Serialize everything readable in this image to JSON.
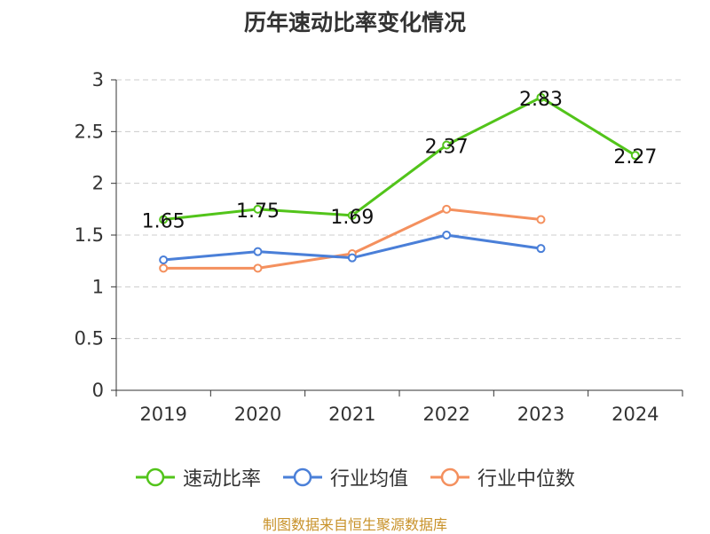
{
  "chart_data": {
    "type": "line",
    "title": "历年速动比率变化情况",
    "categories": [
      "2019",
      "2020",
      "2021",
      "2022",
      "2023",
      "2024"
    ],
    "series": [
      {
        "name": "速动比率",
        "values": [
          1.65,
          1.75,
          1.69,
          2.37,
          2.83,
          2.27
        ],
        "color": "#52c41a",
        "labels": [
          "1.65",
          "1.75",
          "1.69",
          "2.37",
          "2.83",
          "2.27"
        ]
      },
      {
        "name": "行业均值",
        "values": [
          1.26,
          1.34,
          1.28,
          1.5,
          1.37,
          null
        ],
        "color": "#4a7fd8"
      },
      {
        "name": "行业中位数",
        "values": [
          1.18,
          1.18,
          1.32,
          1.75,
          1.65,
          null
        ],
        "color": "#f4905e"
      }
    ],
    "yticks": [
      "0",
      "0.5",
      "1",
      "1.5",
      "2",
      "2.5",
      "3"
    ],
    "ylim": [
      0,
      3
    ],
    "grid": true,
    "legend_position": "bottom"
  },
  "source": {
    "text": "制图数据来自恒生聚源数据库",
    "color": "#c8922a"
  }
}
